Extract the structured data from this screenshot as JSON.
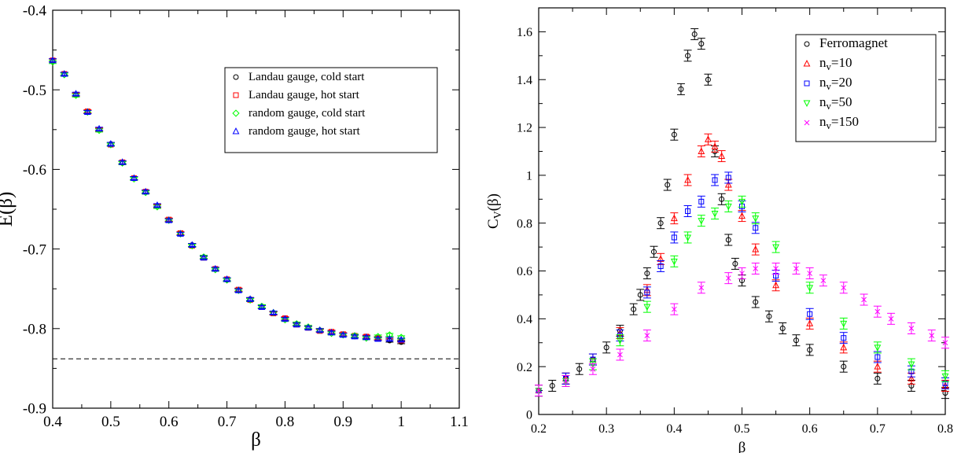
{
  "chart_data": [
    {
      "type": "scatter",
      "ylabel": "E(β)",
      "xlabel": "β",
      "xlim": [
        0.4,
        1.1
      ],
      "ylim": [
        -0.9,
        -0.4
      ],
      "x_ticks": [
        "0.4",
        "0.5",
        "0.6",
        "0.7",
        "0.8",
        "0.9",
        "1",
        "1.1"
      ],
      "y_ticks": [
        "-0.9",
        "-0.8",
        "-0.7",
        "-0.6",
        "-0.5",
        "-0.4"
      ],
      "legend_position": "top-right",
      "reference_line": {
        "y": -0.838,
        "style": "dashed",
        "color": "#000000"
      },
      "series": [
        {
          "name": "Landau gauge, cold start",
          "marker": "circle",
          "color": "#000000",
          "x": [
            0.4,
            0.42,
            0.44,
            0.46,
            0.48,
            0.5,
            0.52,
            0.54,
            0.56,
            0.58,
            0.6,
            0.62,
            0.64,
            0.66,
            0.68,
            0.7,
            0.72,
            0.74,
            0.76,
            0.78,
            0.8,
            0.82,
            0.84,
            0.86,
            0.88,
            0.9,
            0.92,
            0.94,
            0.96,
            0.98,
            1.0
          ],
          "y": [
            -0.463,
            -0.48,
            -0.506,
            -0.528,
            -0.55,
            -0.568,
            -0.592,
            -0.611,
            -0.628,
            -0.646,
            -0.664,
            -0.681,
            -0.695,
            -0.71,
            -0.725,
            -0.739,
            -0.752,
            -0.763,
            -0.772,
            -0.781,
            -0.788,
            -0.794,
            -0.799,
            -0.802,
            -0.805,
            -0.808,
            -0.81,
            -0.811,
            -0.812,
            -0.815,
            -0.817
          ]
        },
        {
          "name": "Landau gauge, hot start",
          "marker": "square",
          "color": "#ff0000",
          "x": [
            0.4,
            0.42,
            0.44,
            0.46,
            0.48,
            0.5,
            0.52,
            0.54,
            0.56,
            0.58,
            0.6,
            0.62,
            0.64,
            0.66,
            0.68,
            0.7,
            0.72,
            0.74,
            0.76,
            0.78,
            0.8,
            0.82,
            0.84,
            0.86,
            0.88,
            0.9,
            0.92,
            0.94,
            0.96,
            0.98,
            1.0
          ],
          "y": [
            -0.463,
            -0.48,
            -0.506,
            -0.527,
            -0.55,
            -0.569,
            -0.591,
            -0.611,
            -0.628,
            -0.646,
            -0.663,
            -0.68,
            -0.696,
            -0.711,
            -0.725,
            -0.738,
            -0.751,
            -0.764,
            -0.773,
            -0.781,
            -0.787,
            -0.795,
            -0.799,
            -0.803,
            -0.804,
            -0.807,
            -0.809,
            -0.81,
            -0.812,
            -0.813,
            -0.815
          ]
        },
        {
          "name": "random gauge, cold start",
          "marker": "diamond",
          "color": "#00ff00",
          "x": [
            0.4,
            0.42,
            0.44,
            0.46,
            0.48,
            0.5,
            0.52,
            0.54,
            0.56,
            0.58,
            0.6,
            0.62,
            0.64,
            0.66,
            0.68,
            0.7,
            0.72,
            0.74,
            0.76,
            0.78,
            0.8,
            0.82,
            0.84,
            0.86,
            0.88,
            0.9,
            0.92,
            0.94,
            0.96,
            0.98,
            1.0
          ],
          "y": [
            -0.465,
            -0.481,
            -0.507,
            -0.528,
            -0.551,
            -0.569,
            -0.592,
            -0.612,
            -0.629,
            -0.647,
            -0.664,
            -0.681,
            -0.696,
            -0.71,
            -0.726,
            -0.739,
            -0.752,
            -0.764,
            -0.772,
            -0.78,
            -0.789,
            -0.794,
            -0.798,
            -0.802,
            -0.806,
            -0.808,
            -0.809,
            -0.812,
            -0.81,
            -0.808,
            -0.811
          ]
        },
        {
          "name": "random gauge, hot start",
          "marker": "triangle-up",
          "color": "#0000ff",
          "x": [
            0.4,
            0.42,
            0.44,
            0.46,
            0.48,
            0.5,
            0.52,
            0.54,
            0.56,
            0.58,
            0.6,
            0.62,
            0.64,
            0.66,
            0.68,
            0.7,
            0.72,
            0.74,
            0.76,
            0.78,
            0.8,
            0.82,
            0.84,
            0.86,
            0.88,
            0.9,
            0.92,
            0.94,
            0.96,
            0.98,
            1.0
          ],
          "y": [
            -0.463,
            -0.48,
            -0.505,
            -0.528,
            -0.549,
            -0.568,
            -0.591,
            -0.611,
            -0.628,
            -0.645,
            -0.664,
            -0.681,
            -0.695,
            -0.711,
            -0.725,
            -0.738,
            -0.752,
            -0.763,
            -0.773,
            -0.78,
            -0.788,
            -0.795,
            -0.799,
            -0.802,
            -0.805,
            -0.808,
            -0.81,
            -0.811,
            -0.813,
            -0.813,
            -0.814
          ]
        }
      ]
    },
    {
      "type": "scatter",
      "ylabel": "C",
      "ylabel_sub": "V",
      "ylabel_suffix": "(β)",
      "xlabel": "β",
      "xlim": [
        0.2,
        0.8
      ],
      "ylim": [
        0,
        1.7
      ],
      "x_ticks": [
        "0.2",
        "0.3",
        "0.4",
        "0.5",
        "0.6",
        "0.7",
        "0.8"
      ],
      "y_ticks": [
        "0",
        "0.2",
        "0.4",
        "0.6",
        "0.8",
        "1",
        "1.2",
        "1.4",
        "1.6"
      ],
      "legend_position": "top-right",
      "series": [
        {
          "name": "Ferromagnet",
          "marker": "circle",
          "color": "#000000",
          "x": [
            0.2,
            0.22,
            0.24,
            0.26,
            0.28,
            0.3,
            0.32,
            0.34,
            0.35,
            0.36,
            0.37,
            0.38,
            0.39,
            0.4,
            0.41,
            0.42,
            0.43,
            0.44,
            0.45,
            0.46,
            0.47,
            0.48,
            0.49,
            0.5,
            0.52,
            0.54,
            0.56,
            0.58,
            0.6,
            0.65,
            0.7,
            0.75,
            0.8
          ],
          "y": [
            0.1,
            0.12,
            0.15,
            0.19,
            0.23,
            0.28,
            0.35,
            0.44,
            0.5,
            0.59,
            0.68,
            0.8,
            0.96,
            1.17,
            1.36,
            1.5,
            1.59,
            1.55,
            1.4,
            1.1,
            0.9,
            0.73,
            0.63,
            0.56,
            0.47,
            0.41,
            0.36,
            0.31,
            0.27,
            0.2,
            0.15,
            0.12,
            0.09
          ]
        },
        {
          "name": "n",
          "name_sub": "v",
          "name_suffix": "=10",
          "marker": "triangle-up",
          "color": "#ff0000",
          "x": [
            0.2,
            0.24,
            0.28,
            0.32,
            0.36,
            0.38,
            0.4,
            0.42,
            0.44,
            0.45,
            0.46,
            0.47,
            0.48,
            0.5,
            0.52,
            0.55,
            0.6,
            0.65,
            0.7,
            0.75,
            0.8
          ],
          "y": [
            0.1,
            0.15,
            0.23,
            0.34,
            0.52,
            0.65,
            0.82,
            0.98,
            1.1,
            1.15,
            1.12,
            1.08,
            0.96,
            0.83,
            0.69,
            0.54,
            0.38,
            0.28,
            0.2,
            0.15,
            0.12
          ]
        },
        {
          "name": "n",
          "name_sub": "v",
          "name_suffix": "=20",
          "marker": "square",
          "color": "#0000ff",
          "x": [
            0.2,
            0.24,
            0.28,
            0.32,
            0.36,
            0.38,
            0.4,
            0.42,
            0.44,
            0.46,
            0.48,
            0.5,
            0.52,
            0.55,
            0.6,
            0.65,
            0.7,
            0.75,
            0.8
          ],
          "y": [
            0.1,
            0.15,
            0.23,
            0.33,
            0.51,
            0.62,
            0.74,
            0.85,
            0.89,
            0.98,
            0.99,
            0.87,
            0.78,
            0.58,
            0.42,
            0.32,
            0.24,
            0.18,
            0.13
          ]
        },
        {
          "name": "n",
          "name_sub": "v",
          "name_suffix": "=50",
          "marker": "triangle-down",
          "color": "#00ff00",
          "x": [
            0.2,
            0.24,
            0.28,
            0.32,
            0.36,
            0.4,
            0.42,
            0.44,
            0.46,
            0.48,
            0.5,
            0.52,
            0.55,
            0.6,
            0.65,
            0.7,
            0.75,
            0.8
          ],
          "y": [
            0.1,
            0.14,
            0.21,
            0.31,
            0.45,
            0.64,
            0.74,
            0.81,
            0.84,
            0.87,
            0.89,
            0.82,
            0.7,
            0.53,
            0.38,
            0.28,
            0.21,
            0.16
          ]
        },
        {
          "name": "n",
          "name_sub": "v",
          "name_suffix": "=150",
          "marker": "x",
          "color": "#ff00ff",
          "x": [
            0.2,
            0.24,
            0.28,
            0.32,
            0.36,
            0.4,
            0.44,
            0.48,
            0.5,
            0.52,
            0.55,
            0.58,
            0.6,
            0.62,
            0.65,
            0.68,
            0.7,
            0.72,
            0.75,
            0.78,
            0.8
          ],
          "y": [
            0.1,
            0.14,
            0.19,
            0.25,
            0.33,
            0.44,
            0.53,
            0.57,
            0.59,
            0.61,
            0.61,
            0.61,
            0.59,
            0.56,
            0.53,
            0.48,
            0.43,
            0.4,
            0.36,
            0.33,
            0.3
          ]
        }
      ]
    }
  ]
}
